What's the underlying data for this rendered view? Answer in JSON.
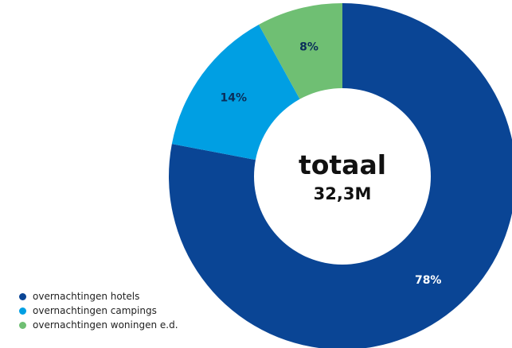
{
  "chart_data": {
    "type": "pie",
    "donut": true,
    "center_label": {
      "title": "totaal",
      "value": "32,3M"
    },
    "slices": [
      {
        "name": "overnachtingen hotels",
        "value": 78,
        "label": "78%",
        "color": "#0a4595",
        "label_color": "#ffffff"
      },
      {
        "name": "overnachtingen campings",
        "value": 14,
        "label": "14%",
        "color": "#009fe3",
        "label_color": "#0b2e5a"
      },
      {
        "name": "overnachtingen woningen e.d.",
        "value": 8,
        "label": "8%",
        "color": "#6fbf73",
        "label_color": "#0b2e5a"
      }
    ],
    "start": "12 o'clock",
    "direction": "clockwise",
    "legend_position": "bottom-left"
  }
}
